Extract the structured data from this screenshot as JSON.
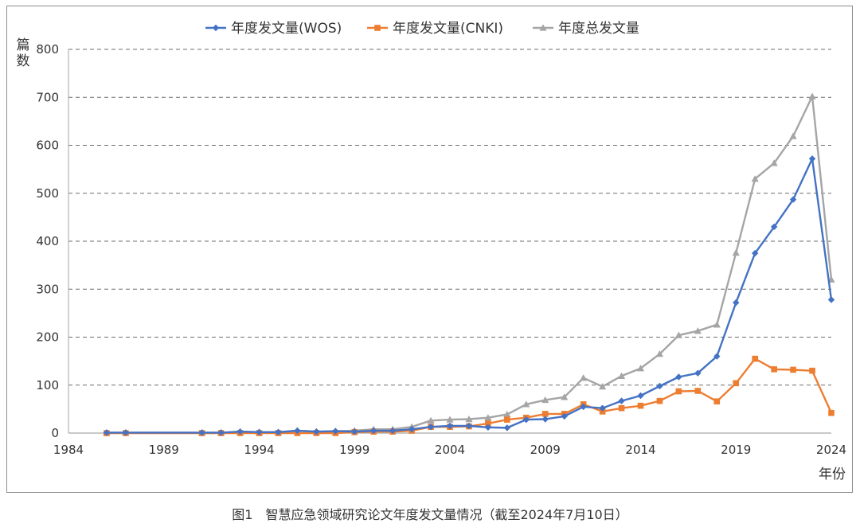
{
  "chart_data": {
    "type": "line",
    "ylabel": "篇数",
    "xlabel": "年份",
    "ylim": [
      0,
      800
    ],
    "yticks": [
      0,
      100,
      200,
      300,
      400,
      500,
      600,
      700,
      800
    ],
    "xlim": [
      1984,
      2024
    ],
    "xticks": [
      1984,
      1989,
      1994,
      1999,
      2004,
      2009,
      2014,
      2019,
      2024
    ],
    "grid": "horizontal dashed",
    "legend_position": "top",
    "x": [
      1986,
      1987,
      1991,
      1992,
      1993,
      1994,
      1995,
      1996,
      1997,
      1998,
      1999,
      2000,
      2001,
      2002,
      2003,
      2004,
      2005,
      2006,
      2007,
      2008,
      2009,
      2010,
      2011,
      2012,
      2013,
      2014,
      2015,
      2016,
      2017,
      2018,
      2019,
      2020,
      2021,
      2022,
      2023,
      2024
    ],
    "series": [
      {
        "name": "年度发文量(WOS)",
        "color": "#4472c4",
        "marker": "diamond",
        "values": [
          1,
          1,
          1,
          1,
          3,
          2,
          2,
          5,
          3,
          4,
          3,
          5,
          5,
          8,
          13,
          15,
          15,
          12,
          11,
          28,
          29,
          35,
          55,
          52,
          67,
          78,
          98,
          117,
          125,
          160,
          272,
          375,
          430,
          487,
          572,
          278
        ]
      },
      {
        "name": "年度发文量(CNKI)",
        "color": "#ed7d31",
        "marker": "square",
        "values": [
          0,
          0,
          0,
          0,
          0,
          0,
          0,
          0,
          0,
          0,
          2,
          3,
          3,
          5,
          13,
          13,
          14,
          20,
          28,
          32,
          40,
          40,
          60,
          45,
          52,
          57,
          67,
          87,
          88,
          66,
          104,
          155,
          133,
          132,
          130,
          42
        ]
      },
      {
        "name": "年度总发文量",
        "color": "#a5a5a5",
        "marker": "triangle",
        "values": [
          1,
          1,
          1,
          1,
          3,
          2,
          2,
          5,
          3,
          4,
          5,
          8,
          8,
          13,
          26,
          28,
          29,
          32,
          39,
          60,
          69,
          75,
          115,
          97,
          119,
          135,
          165,
          204,
          213,
          226,
          376,
          530,
          563,
          619,
          702,
          320
        ]
      }
    ]
  },
  "caption": "图1　智慧应急领域研究论文年度发文量情况（截至2024年7月10日）"
}
